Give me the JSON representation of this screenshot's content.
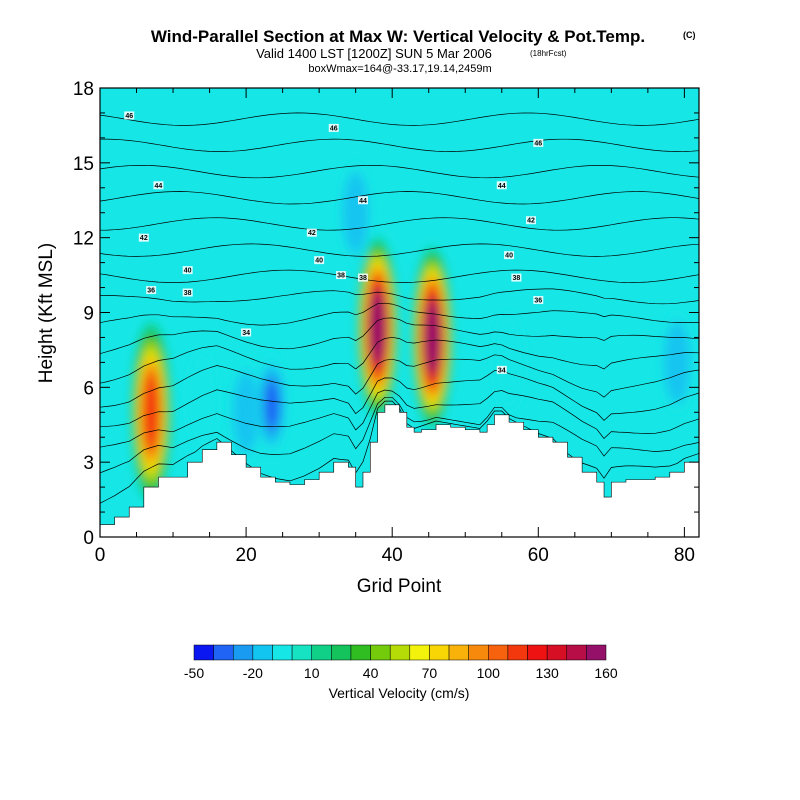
{
  "chart_data": {
    "type": "heatmap",
    "title": "Wind-Parallel Section at Max W: Vertical Velocity & Pot.Temp.",
    "title_mark": "(C)",
    "subtitle": "Valid 1400 LST [1200Z] SUN 5 Mar 2006",
    "subtitle_note": "(18hrFcst)",
    "subtitle2": "boxWmax=164@-33.17,19.14,2459m",
    "xlabel": "Grid Point",
    "ylabel": "Height (Kft MSL)",
    "xlim": [
      0,
      82
    ],
    "ylim": [
      0,
      18
    ],
    "xticks": [
      0,
      20,
      40,
      60,
      80
    ],
    "yticks": [
      0,
      3,
      6,
      9,
      12,
      15,
      18
    ],
    "colorbar": {
      "label": "Vertical Velocity (cm/s)",
      "tick_labels": [
        "-50",
        "-20",
        "10",
        "40",
        "70",
        "100",
        "130",
        "160"
      ],
      "tick_values": [
        -50,
        -20,
        10,
        40,
        70,
        100,
        130,
        160
      ],
      "levels": [
        -50,
        -40,
        -30,
        -20,
        -10,
        0,
        10,
        20,
        30,
        40,
        50,
        60,
        70,
        80,
        90,
        100,
        110,
        120,
        130,
        140,
        150,
        160
      ],
      "colors": [
        "#0a17f0",
        "#1f64f5",
        "#1a9bf2",
        "#12c5f0",
        "#17e6e6",
        "#16e3c2",
        "#10d088",
        "#14c35c",
        "#2fbd22",
        "#73cb0c",
        "#b6dc08",
        "#f2f20c",
        "#f8d605",
        "#f8b20a",
        "#f78a0d",
        "#f6620d",
        "#f4380e",
        "#ee1212",
        "#d60f24",
        "#b70e48",
        "#951068"
      ]
    },
    "background_value": 0,
    "updrafts": [
      {
        "x": 7,
        "y": 5.0,
        "peak": 120
      },
      {
        "x": 38,
        "y": 8.4,
        "peak": 164
      },
      {
        "x": 45.5,
        "y": 8.0,
        "peak": 150
      }
    ],
    "downdrafts": [
      {
        "x": 23.5,
        "y": 5.3,
        "peak": -45
      },
      {
        "x": 20,
        "y": 5.0,
        "peak": -20
      },
      {
        "x": 35,
        "y": 13.0,
        "peak": -20
      },
      {
        "x": 14,
        "y": 5.5,
        "peak": -15
      },
      {
        "x": 79,
        "y": 7.0,
        "peak": -20
      },
      {
        "x": 56,
        "y": 7.0,
        "peak": -15
      }
    ],
    "terrain_kft": [
      [
        0,
        0.5
      ],
      [
        2,
        0.8
      ],
      [
        4,
        1.2
      ],
      [
        6,
        2.0
      ],
      [
        8,
        2.4
      ],
      [
        10,
        2.4
      ],
      [
        12,
        3.0
      ],
      [
        14,
        3.5
      ],
      [
        16,
        3.8
      ],
      [
        18,
        3.3
      ],
      [
        20,
        2.8
      ],
      [
        22,
        2.4
      ],
      [
        24,
        2.2
      ],
      [
        26,
        2.1
      ],
      [
        28,
        2.3
      ],
      [
        30,
        2.6
      ],
      [
        32,
        3.0
      ],
      [
        34,
        2.8
      ],
      [
        35,
        2.0
      ],
      [
        36,
        2.6
      ],
      [
        37,
        3.8
      ],
      [
        38,
        5.0
      ],
      [
        39,
        5.3
      ],
      [
        40,
        5.3
      ],
      [
        41,
        5.0
      ],
      [
        42,
        4.4
      ],
      [
        43,
        4.2
      ],
      [
        44,
        4.3
      ],
      [
        46,
        4.5
      ],
      [
        48,
        4.4
      ],
      [
        50,
        4.3
      ],
      [
        52,
        4.2
      ],
      [
        53,
        4.5
      ],
      [
        54,
        4.9
      ],
      [
        55,
        4.9
      ],
      [
        56,
        4.6
      ],
      [
        58,
        4.3
      ],
      [
        60,
        4.0
      ],
      [
        62,
        3.8
      ],
      [
        64,
        3.2
      ],
      [
        66,
        2.6
      ],
      [
        68,
        2.2
      ],
      [
        69,
        1.6
      ],
      [
        70,
        2.2
      ],
      [
        72,
        2.3
      ],
      [
        76,
        2.4
      ],
      [
        78,
        2.6
      ],
      [
        80,
        3.0
      ],
      [
        82,
        3.2
      ]
    ],
    "isentrope_labels": [
      {
        "text": "46",
        "x": 4,
        "y": 16.9
      },
      {
        "text": "46",
        "x": 32,
        "y": 16.4
      },
      {
        "text": "46",
        "x": 60,
        "y": 15.8
      },
      {
        "text": "44",
        "x": 8,
        "y": 14.1
      },
      {
        "text": "44",
        "x": 36,
        "y": 13.5
      },
      {
        "text": "44",
        "x": 55,
        "y": 14.1
      },
      {
        "text": "42",
        "x": 6,
        "y": 12.0
      },
      {
        "text": "42",
        "x": 29,
        "y": 12.2
      },
      {
        "text": "42",
        "x": 59,
        "y": 12.7
      },
      {
        "text": "40",
        "x": 12,
        "y": 10.7
      },
      {
        "text": "40",
        "x": 30,
        "y": 11.1
      },
      {
        "text": "40",
        "x": 56,
        "y": 11.3
      },
      {
        "text": "38",
        "x": 12,
        "y": 9.8
      },
      {
        "text": "38",
        "x": 33,
        "y": 10.5
      },
      {
        "text": "38",
        "x": 36,
        "y": 10.4
      },
      {
        "text": "38",
        "x": 57,
        "y": 10.4
      },
      {
        "text": "36",
        "x": 7,
        "y": 9.9
      },
      {
        "text": "36",
        "x": 60,
        "y": 9.5
      },
      {
        "text": "34",
        "x": 20,
        "y": 8.2
      },
      {
        "text": "34",
        "x": 55,
        "y": 6.7
      }
    ]
  }
}
